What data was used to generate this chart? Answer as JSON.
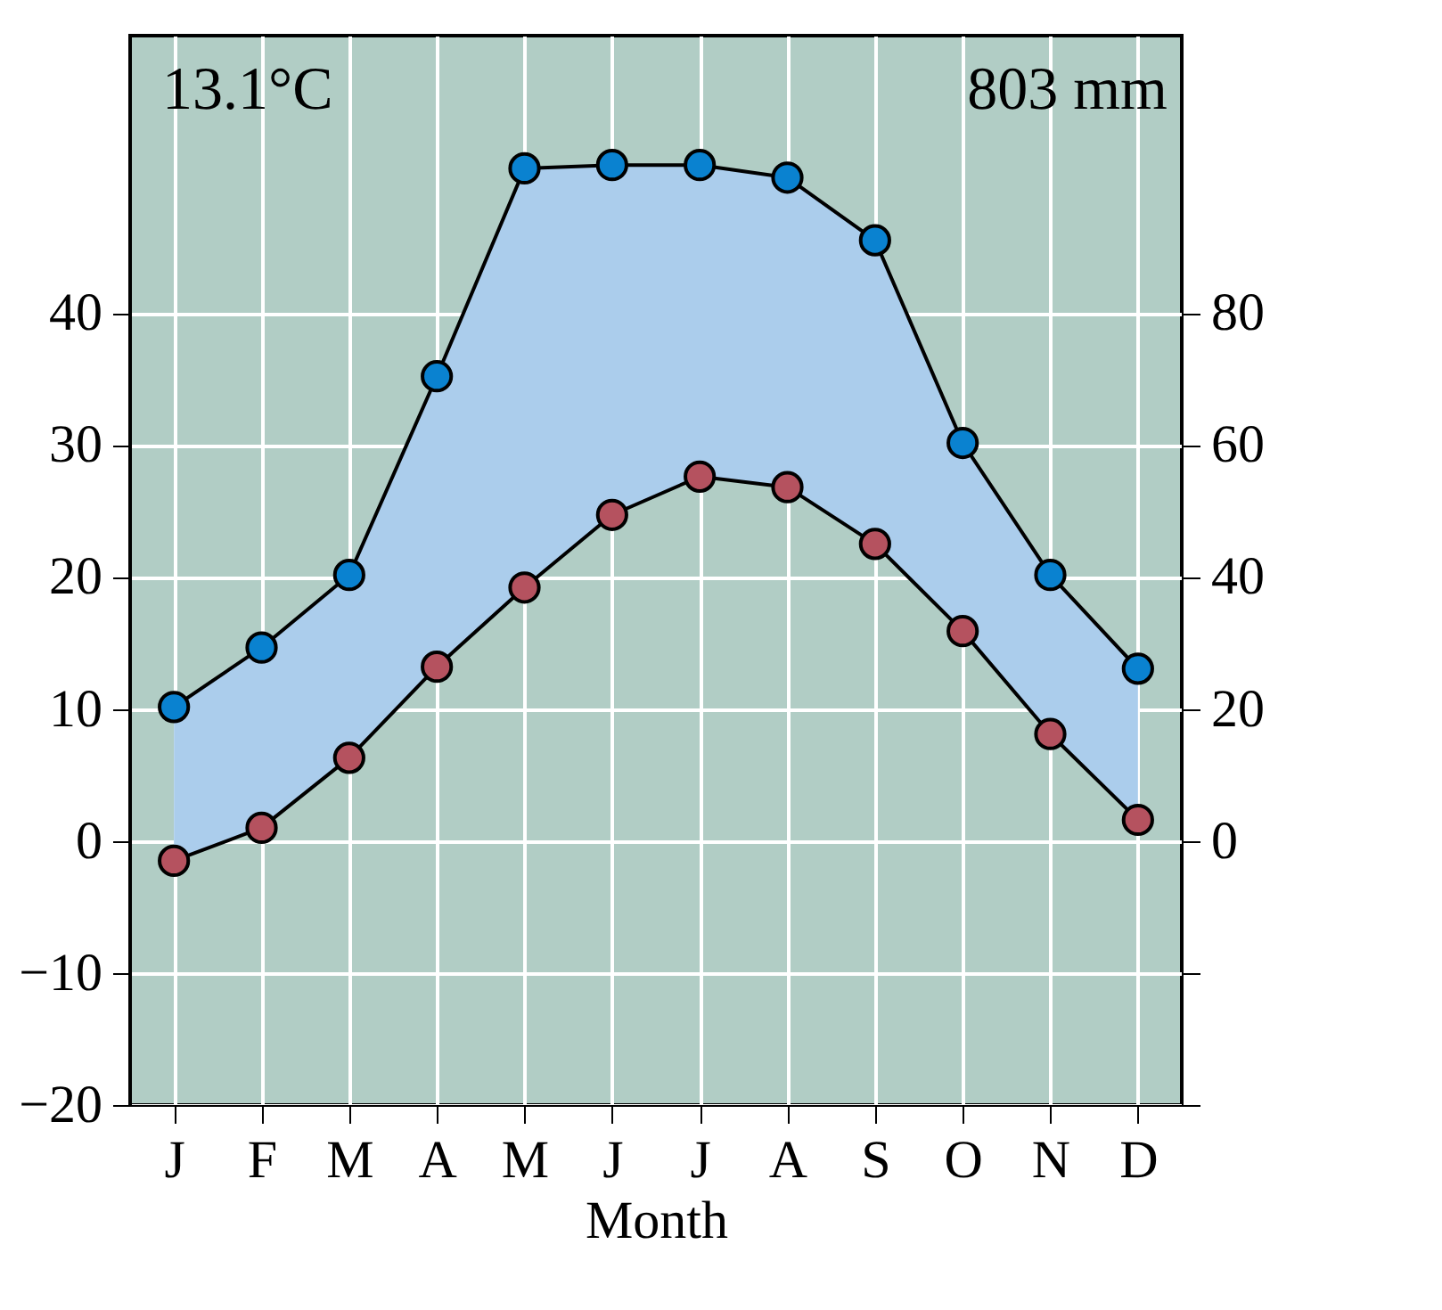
{
  "chart_data": {
    "type": "line",
    "xlabel": "Month",
    "categories": [
      "J",
      "F",
      "M",
      "A",
      "M",
      "J",
      "J",
      "A",
      "S",
      "O",
      "N",
      "D"
    ],
    "series": [
      {
        "color": "#b5525f",
        "values": [
          -1.5,
          1,
          6.3,
          13.2,
          19.2,
          24.7,
          27.6,
          26.8,
          22.5,
          15.9,
          8.1,
          1.6
        ]
      },
      {
        "color": "#0a82d0",
        "axis": "y2",
        "values": [
          20.3,
          29.3,
          40.3,
          70.4,
          101.9,
          102.4,
          102.4,
          100.5,
          91,
          60.3,
          40.3,
          26.1
        ],
        "upper": [
          20.3,
          29.3,
          40.3,
          70.4,
          101.9,
          102.4,
          102.4,
          100.5,
          91,
          60.3,
          40.3,
          26.1
        ],
        "lower": [
          -3,
          2,
          12.6,
          26.4,
          38.4,
          49.4,
          55.2,
          53.6,
          45,
          31.8,
          16.2,
          3.2
        ]
      }
    ],
    "ylim": [
      -20,
      61
    ],
    "yticks": [
      {
        "value": -20,
        "label": "−20"
      },
      {
        "value": -10,
        "label": "−10"
      },
      0,
      10,
      20,
      30,
      40
    ],
    "y2lim": [
      -40,
      122
    ],
    "y2ticks": [
      {
        "value": -40,
        "label": null
      },
      {
        "value": -20,
        "label": null
      },
      0,
      20,
      40,
      60,
      80
    ],
    "annotations": [
      "13.1°C",
      "803 mm"
    ],
    "marker": "circle",
    "grid": true
  }
}
